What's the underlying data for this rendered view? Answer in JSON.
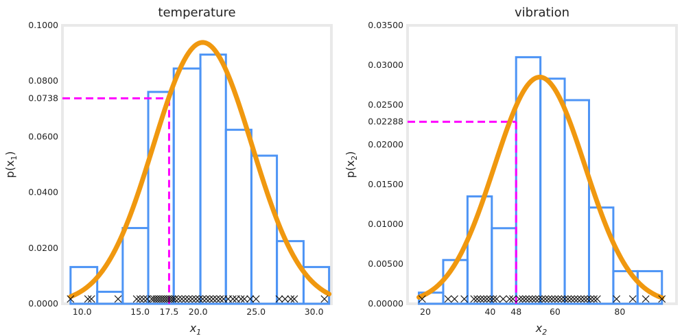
{
  "chart_data": [
    {
      "type": "bar",
      "title": "temperature",
      "xlabel": "x",
      "xlabel_sub": "1",
      "ylabel": "p(x",
      "ylabel_sub": "1",
      "ylabel_close": ")",
      "xlim": [
        8.3,
        31.5
      ],
      "ylim": [
        0,
        0.1
      ],
      "xticks": [
        10.0,
        15.0,
        17.5,
        20.0,
        25.0,
        30.0
      ],
      "xtick_labels": [
        "10.0",
        "15.0",
        "17.5",
        "20.0",
        "25.0",
        "30.0"
      ],
      "yticks": [
        0,
        0.02,
        0.04,
        0.06,
        0.0738,
        0.08,
        0.1
      ],
      "ytick_labels": [
        "0.0000",
        "0.0200",
        "0.0400",
        "0.0600",
        "0.0738",
        "0.0800",
        "0.1000"
      ],
      "bins": [
        9.0,
        11.3,
        13.5,
        15.7,
        17.9,
        20.2,
        22.4,
        24.6,
        26.8,
        29.1,
        31.3
      ],
      "heights": [
        0.0132,
        0.0043,
        0.0272,
        0.0761,
        0.0845,
        0.0895,
        0.0625,
        0.0532,
        0.0225,
        0.0132
      ],
      "curve": {
        "mu": 20.4,
        "sigma": 4.25
      },
      "marker": {
        "x": 17.5,
        "y": 0.0738
      },
      "samples": [
        9.0,
        10.5,
        10.8,
        13.1,
        14.7,
        15.0,
        15.3,
        15.6,
        16.0,
        16.2,
        16.4,
        16.6,
        16.8,
        17.0,
        17.2,
        17.4,
        17.6,
        17.8,
        18.0,
        18.3,
        18.6,
        18.9,
        19.2,
        19.5,
        19.8,
        20.1,
        20.4,
        20.7,
        21.0,
        21.3,
        21.6,
        21.9,
        22.2,
        22.6,
        23.0,
        23.3,
        23.7,
        24.0,
        24.5,
        25.0,
        27.0,
        27.5,
        28.0,
        28.3,
        30.9
      ]
    },
    {
      "type": "bar",
      "title": "vibration",
      "xlabel": "x",
      "xlabel_sub": "2",
      "ylabel": "p(x",
      "ylabel_sub": "2",
      "ylabel_close": ")",
      "xlim": [
        14.5,
        97.5
      ],
      "ylim": [
        0,
        0.035
      ],
      "xticks": [
        20,
        40,
        48,
        60,
        80
      ],
      "xtick_labels": [
        "20",
        "40",
        "48",
        "60",
        "80"
      ],
      "yticks": [
        0,
        0.005,
        0.01,
        0.015,
        0.02,
        0.02288,
        0.025,
        0.03,
        0.035
      ],
      "ytick_labels": [
        "0.00000",
        "0.00500",
        "0.01000",
        "0.01500",
        "0.02000",
        "0.02288",
        "0.02500",
        "0.03000",
        "0.03500"
      ],
      "bins": [
        18.0,
        25.5,
        33.0,
        40.5,
        48.0,
        55.5,
        63.0,
        70.5,
        78.0,
        85.5,
        93.0
      ],
      "heights": [
        0.0014,
        0.0055,
        0.0135,
        0.0095,
        0.031,
        0.0283,
        0.0256,
        0.0121,
        0.0041,
        0.0041
      ],
      "curve": {
        "mu": 55.3,
        "sigma": 14.0
      },
      "marker": {
        "x": 48,
        "y": 0.02288
      },
      "samples": [
        19,
        27,
        29,
        32,
        35,
        36,
        37,
        38,
        39,
        40,
        41,
        42,
        44,
        46,
        47,
        49,
        50,
        51,
        52,
        53,
        54,
        55,
        56,
        57,
        58,
        59,
        60,
        61,
        62,
        63,
        64,
        65,
        66,
        67,
        68,
        69,
        70,
        71,
        72,
        73,
        79,
        84,
        88,
        93
      ]
    }
  ]
}
